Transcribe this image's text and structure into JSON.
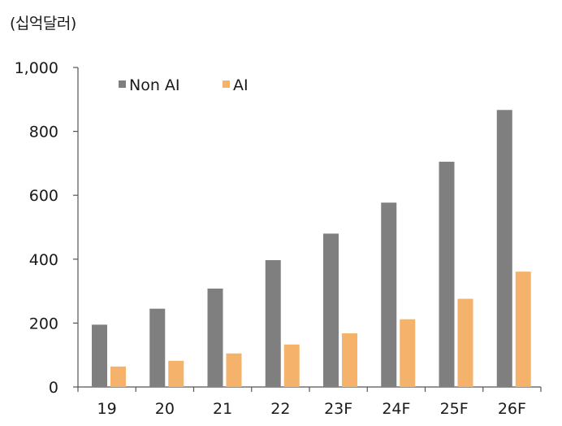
{
  "unit_label": "(십억달러)",
  "colors": {
    "non_ai": "#7f7f7f",
    "ai": "#f4b26b",
    "axis": "#555555",
    "text": "#1a1a1a"
  },
  "chart_data": {
    "type": "bar",
    "title": "",
    "xlabel": "",
    "ylabel": "(십억달러)",
    "categories": [
      "19",
      "20",
      "21",
      "22",
      "23F",
      "24F",
      "25F",
      "26F"
    ],
    "series": [
      {
        "name": "Non AI",
        "values": [
          195,
          245,
          308,
          397,
          480,
          577,
          705,
          867
        ]
      },
      {
        "name": "AI",
        "values": [
          64,
          82,
          105,
          133,
          168,
          212,
          276,
          361
        ]
      }
    ],
    "ylim": [
      0,
      1000
    ],
    "yticks": [
      0,
      200,
      400,
      600,
      800,
      1000
    ],
    "ytick_labels": [
      "0",
      "200",
      "400",
      "600",
      "800",
      "1,000"
    ],
    "grid": false,
    "legend_position": "top-left"
  }
}
